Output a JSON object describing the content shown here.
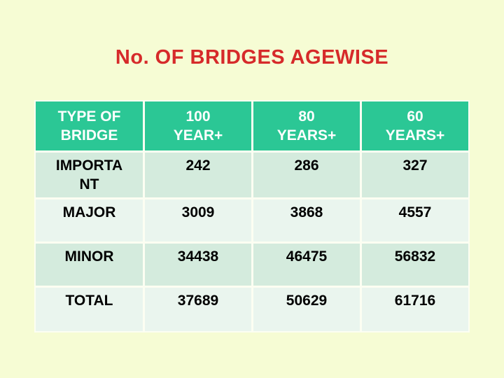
{
  "slide": {
    "title": "No. OF BRIDGES AGEWISE",
    "colors": {
      "background": "#F6FCD4",
      "title_text": "#D62A2A",
      "header_bg": "#2BC795",
      "header_text": "#FFFFFF",
      "row_band_dark": "#D4EBDD",
      "row_band_light": "#EAF5EE",
      "grid_line": "#FCFEF2",
      "body_text": "#000000"
    }
  },
  "table": {
    "header_cells": [
      {
        "lines": [
          "TYPE OF",
          "BRIDGE"
        ]
      },
      {
        "lines": [
          "100",
          "YEAR+"
        ]
      },
      {
        "lines": [
          "80",
          "YEARS+"
        ]
      },
      {
        "lines": [
          "60",
          "YEARS+"
        ]
      }
    ],
    "rows": [
      {
        "label_lines": [
          "IMPORTA",
          "NT"
        ],
        "values": [
          "242",
          "286",
          "327"
        ]
      },
      {
        "label_lines": [
          "MAJOR"
        ],
        "values": [
          "3009",
          "3868",
          "4557"
        ]
      },
      {
        "label_lines": [
          "MINOR"
        ],
        "values": [
          "34438",
          "46475",
          "56832"
        ]
      },
      {
        "label_lines": [
          "TOTAL"
        ],
        "values": [
          "37689",
          "50629",
          "61716"
        ]
      }
    ]
  }
}
